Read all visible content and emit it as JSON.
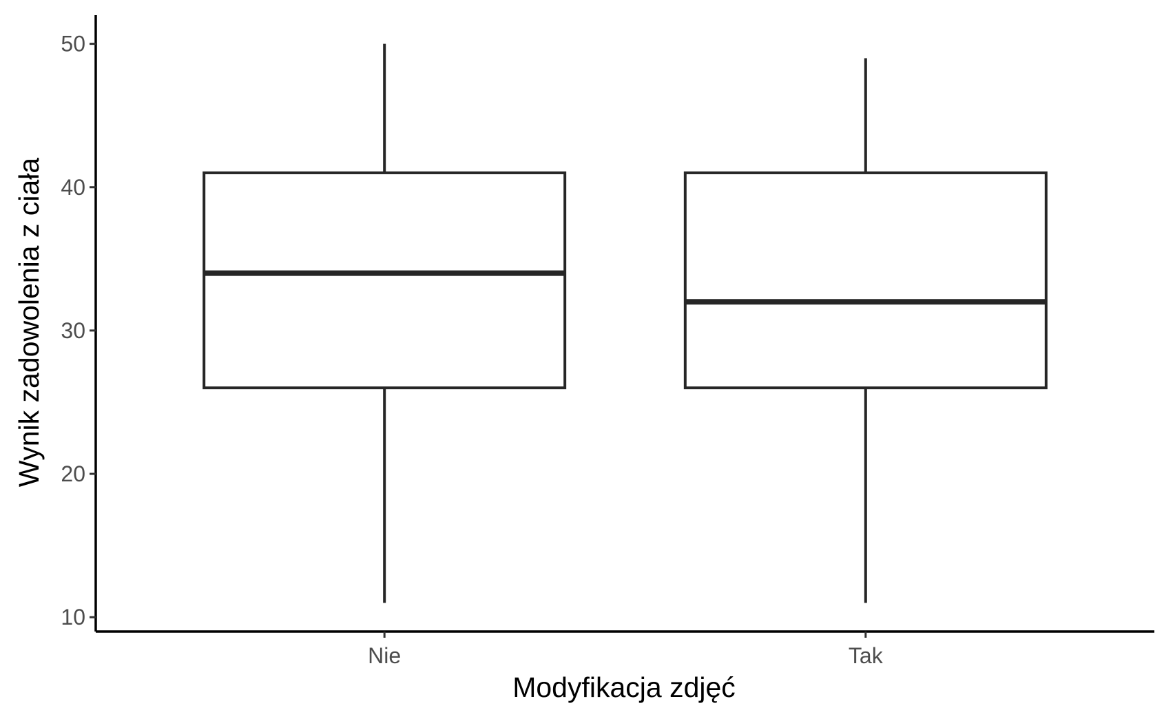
{
  "chart_data": {
    "type": "boxplot",
    "title": "",
    "xlabel": "Modyfikacja zdjęć",
    "ylabel": "Wynik zadowolenia z ciała",
    "ylim": [
      9,
      52
    ],
    "yticks": [
      10,
      20,
      30,
      40,
      50
    ],
    "grid": false,
    "categories": [
      "Nie",
      "Tak"
    ],
    "boxes": [
      {
        "category": "Nie",
        "min": 11,
        "q1": 26,
        "median": 34,
        "q3": 41,
        "max": 50
      },
      {
        "category": "Tak",
        "min": 11,
        "q1": 26,
        "median": 32,
        "q3": 41,
        "max": 49
      }
    ],
    "colors": {
      "box_line": "#262626",
      "box_fill": "#ffffff",
      "axis": "#000000",
      "tick_text": "#4d4d4d"
    }
  }
}
